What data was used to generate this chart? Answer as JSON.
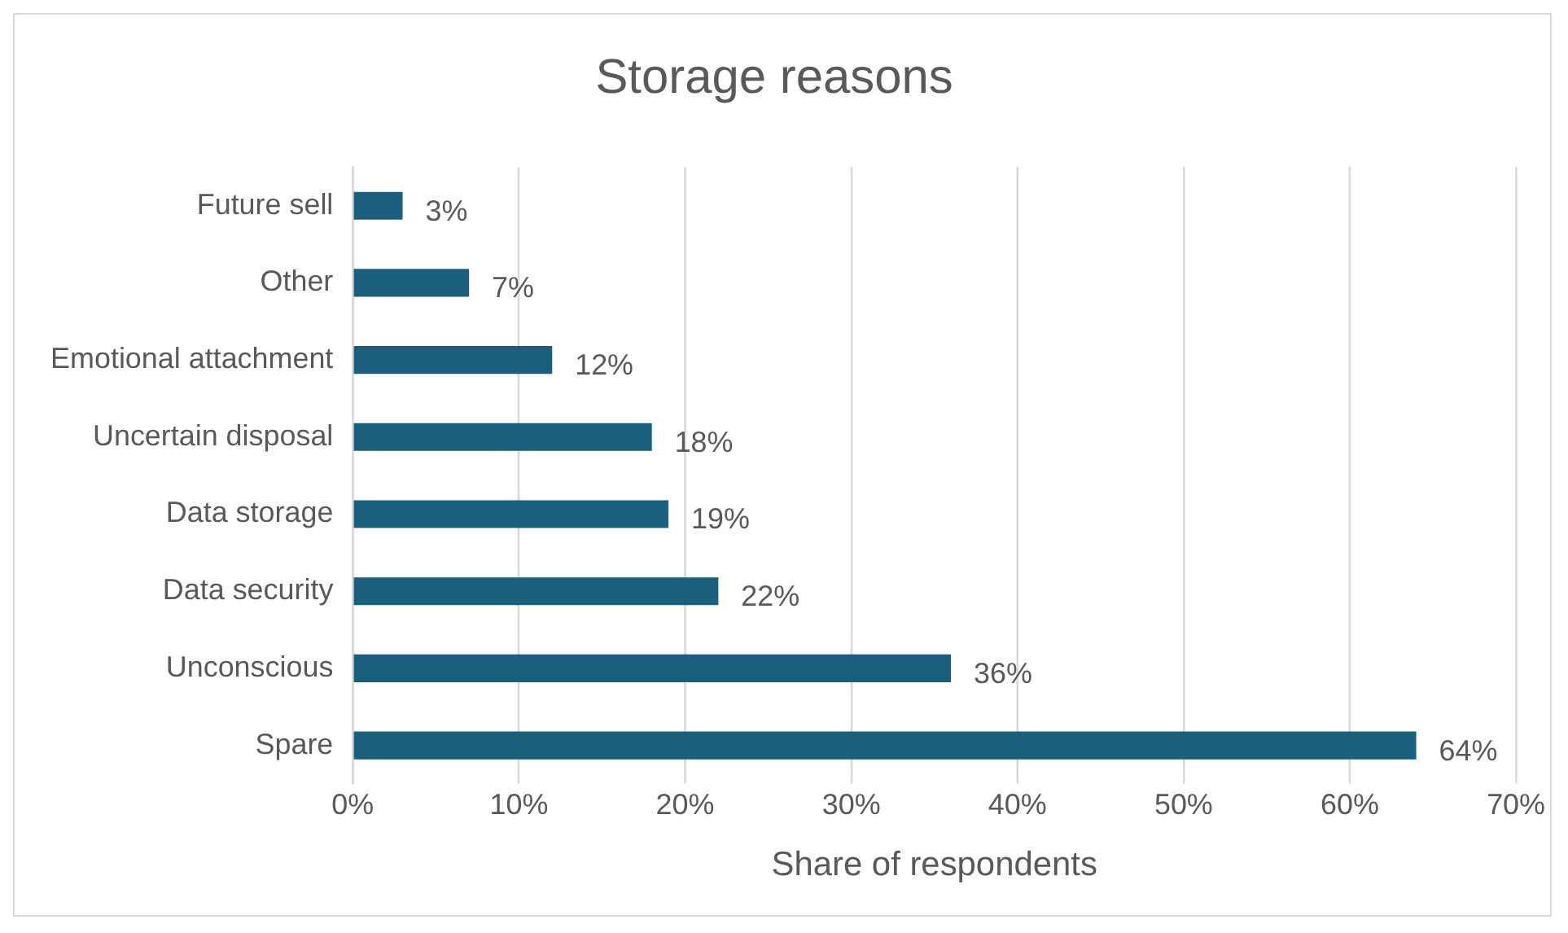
{
  "chart_data": {
    "type": "bar",
    "orientation": "horizontal",
    "title": "Storage reasons",
    "xlabel": "Share of respondents",
    "categories": [
      "Future sell",
      "Other",
      "Emotional attachment",
      "Uncertain disposal",
      "Data storage",
      "Data security",
      "Unconscious",
      "Spare"
    ],
    "values": [
      3,
      7,
      12,
      18,
      19,
      22,
      36,
      64
    ],
    "value_labels": [
      "3%",
      "7%",
      "12%",
      "18%",
      "19%",
      "22%",
      "36%",
      "64%"
    ],
    "color": "#1b5f7e",
    "xlim": [
      0,
      70
    ],
    "xticks": [
      {
        "value": 0,
        "label": "0%"
      },
      {
        "value": 10,
        "label": "10%"
      },
      {
        "value": 20,
        "label": "20%"
      },
      {
        "value": 30,
        "label": "30%"
      },
      {
        "value": 40,
        "label": "40%"
      },
      {
        "value": 50,
        "label": "50%"
      },
      {
        "value": 60,
        "label": "60%"
      },
      {
        "value": 70,
        "label": "70%"
      }
    ],
    "grid": "x",
    "legend": false
  }
}
